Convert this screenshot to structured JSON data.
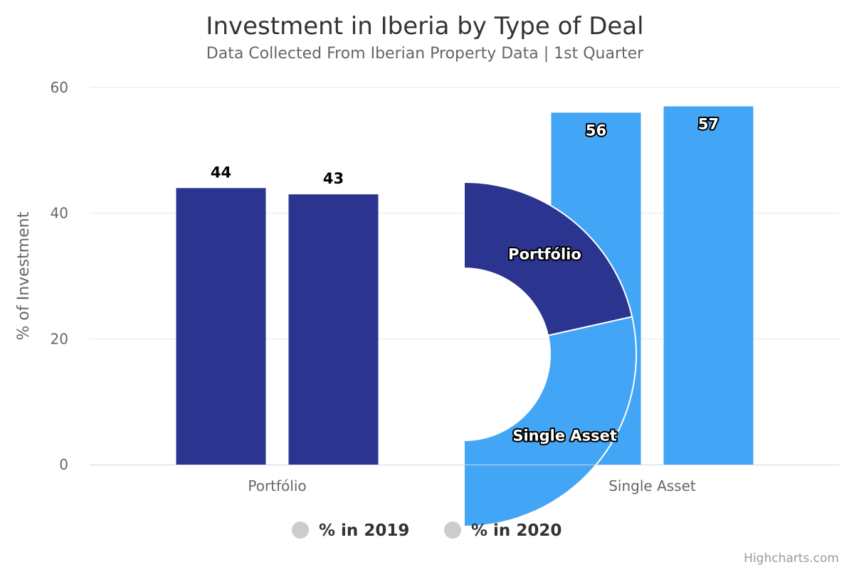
{
  "chart_data": {
    "type": "bar",
    "title": "Investment in Iberia by Type of Deal",
    "subtitle": "Data Collected From Iberian Property Data | 1st Quarter",
    "ylabel": "% of Investment",
    "ylim": [
      0,
      60
    ],
    "yticks": [
      0,
      20,
      40,
      60
    ],
    "categories": [
      "Portfólio",
      "Single Asset"
    ],
    "category_colors": [
      "#2b3590",
      "#43a5f5"
    ],
    "series": [
      {
        "name": "% in 2019",
        "values": [
          44,
          56
        ]
      },
      {
        "name": "% in 2020",
        "values": [
          43,
          57
        ]
      }
    ],
    "pie": {
      "slices": [
        {
          "label": "Portfólio",
          "value": 43,
          "color": "#2b3590"
        },
        {
          "label": "Single Asset",
          "value": 57,
          "color": "#43a5f5"
        }
      ]
    },
    "legend": {
      "placement": "bottom-center",
      "marker_color": "#cccccc"
    },
    "grid": true,
    "credits": "Highcharts.com"
  }
}
